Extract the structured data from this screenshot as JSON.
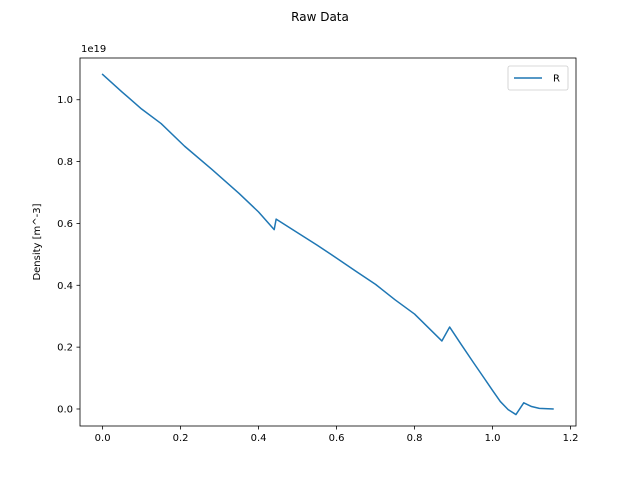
{
  "chart_data": {
    "type": "line",
    "title": "Raw Data",
    "xlabel": "",
    "ylabel": "Density [m^-3]",
    "y_offset_label": "1e19",
    "y_scale_factor": 1e+19,
    "xlim": [
      -0.058,
      1.214
    ],
    "ylim": [
      -0.055,
      1.135
    ],
    "x_ticks": [
      0.0,
      0.2,
      0.4,
      0.6,
      0.8,
      1.0,
      1.2
    ],
    "x_tick_labels": [
      "0.0",
      "0.2",
      "0.4",
      "0.6",
      "0.8",
      "1.0",
      "1.2"
    ],
    "y_ticks": [
      0.0,
      0.2,
      0.4,
      0.6,
      0.8,
      1.0
    ],
    "y_tick_labels": [
      "0.0",
      "0.2",
      "0.4",
      "0.6",
      "0.8",
      "1.0"
    ],
    "grid": false,
    "legend_position": "upper right",
    "series": [
      {
        "name": "R",
        "color": "#1f77b4",
        "x": [
          0.0,
          0.05,
          0.1,
          0.15,
          0.21,
          0.28,
          0.35,
          0.4,
          0.44,
          0.445,
          0.5,
          0.55,
          0.6,
          0.65,
          0.7,
          0.75,
          0.8,
          0.87,
          0.89,
          0.92,
          0.95,
          0.98,
          1.0,
          1.02,
          1.04,
          1.06,
          1.08,
          1.1,
          1.12,
          1.155
        ],
        "y": [
          1.082,
          1.025,
          0.97,
          0.923,
          0.85,
          0.775,
          0.697,
          0.637,
          0.58,
          0.614,
          0.57,
          0.53,
          0.488,
          0.445,
          0.403,
          0.353,
          0.307,
          0.22,
          0.265,
          0.208,
          0.152,
          0.097,
          0.06,
          0.024,
          -0.002,
          -0.018,
          0.02,
          0.008,
          0.002,
          0.0
        ]
      }
    ]
  }
}
